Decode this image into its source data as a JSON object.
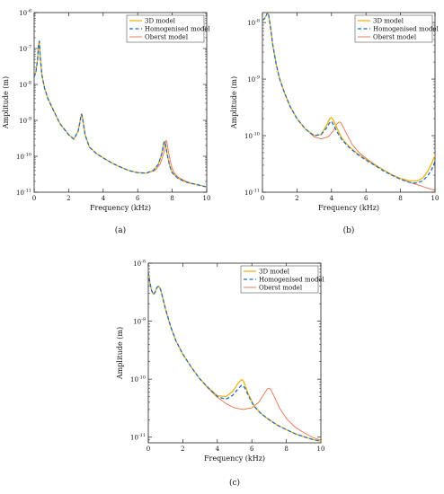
{
  "colors": {
    "model_3d": "#f2b418",
    "homogenised": "#1f6fbf",
    "oberst": "#e8704a"
  },
  "chart_data": [
    {
      "type": "line",
      "caption": "(a)",
      "xlabel": "Frequency (kHz)",
      "ylabel": "Amplitude (m)",
      "xlim": [
        0,
        10
      ],
      "ylim": [
        1e-11,
        1e-06
      ],
      "yscale": "log",
      "xticks": [
        "0",
        "2",
        "4",
        "6",
        "8",
        "10"
      ],
      "yticks": [
        {
          "base": "10",
          "exp": "-11"
        },
        {
          "base": "10",
          "exp": "-10"
        },
        {
          "base": "10",
          "exp": "-9"
        },
        {
          "base": "10",
          "exp": "-8"
        },
        {
          "base": "10",
          "exp": "-7"
        },
        {
          "base": "10",
          "exp": "-6"
        }
      ],
      "legend_position": "top-right",
      "series": [
        {
          "name": "3D model",
          "x": [
            0,
            0.1,
            0.2,
            0.25,
            0.3,
            0.35,
            0.45,
            0.6,
            0.8,
            1.0,
            1.5,
            2.0,
            2.3,
            2.55,
            2.7,
            2.75,
            2.8,
            2.95,
            3.2,
            3.6,
            4.0,
            4.5,
            5.0,
            5.5,
            6.0,
            6.5,
            6.9,
            7.2,
            7.4,
            7.5,
            7.55,
            7.6,
            7.7,
            7.85,
            8.0,
            8.3,
            8.7,
            9.0,
            9.5,
            10
          ],
          "y": [
            1.6e-08,
            2.2e-08,
            5e-08,
            1.2e-07,
            1.6e-07,
            6e-08,
            1.8e-08,
            8e-09,
            4e-09,
            2.5e-09,
            8e-10,
            4e-10,
            3e-10,
            5e-10,
            1.2e-09,
            1.5e-09,
            1.2e-09,
            4e-10,
            1.8e-10,
            1.2e-10,
            9e-11,
            6.5e-11,
            5e-11,
            4e-11,
            3.5e-11,
            3.4e-11,
            4e-11,
            6e-11,
            1.2e-10,
            2.2e-10,
            2.6e-10,
            2.3e-10,
            1.2e-10,
            5.5e-11,
            3.5e-11,
            2.5e-11,
            2e-11,
            1.8e-11,
            1.6e-11,
            1.4e-11
          ]
        },
        {
          "name": "Homogenised model",
          "x": [
            0,
            0.1,
            0.2,
            0.25,
            0.3,
            0.35,
            0.45,
            0.6,
            0.8,
            1.0,
            1.5,
            2.0,
            2.3,
            2.55,
            2.7,
            2.75,
            2.8,
            2.95,
            3.2,
            3.6,
            4.0,
            4.5,
            5.0,
            5.5,
            6.0,
            6.5,
            6.9,
            7.2,
            7.4,
            7.5,
            7.55,
            7.6,
            7.7,
            7.85,
            8.0,
            8.3,
            8.7,
            9.0,
            9.5,
            10
          ],
          "y": [
            1.6e-08,
            2.2e-08,
            5e-08,
            1.2e-07,
            1.6e-07,
            6e-08,
            1.8e-08,
            8e-09,
            4e-09,
            2.5e-09,
            8e-10,
            4e-10,
            3e-10,
            5e-10,
            1.2e-09,
            1.5e-09,
            1.2e-09,
            4e-10,
            1.8e-10,
            1.2e-10,
            9e-11,
            6.5e-11,
            5e-11,
            4e-11,
            3.5e-11,
            3.4e-11,
            4e-11,
            6e-11,
            1.2e-10,
            2.2e-10,
            2.6e-10,
            2.3e-10,
            1.2e-10,
            5.5e-11,
            3.5e-11,
            2.5e-11,
            2e-11,
            1.8e-11,
            1.6e-11,
            1.4e-11
          ]
        },
        {
          "name": "Oberst model",
          "x": [
            0,
            0.1,
            0.2,
            0.25,
            0.3,
            0.35,
            0.45,
            0.6,
            0.8,
            1.0,
            1.5,
            2.0,
            2.3,
            2.55,
            2.7,
            2.75,
            2.8,
            2.95,
            3.2,
            3.6,
            4.0,
            4.5,
            5.0,
            5.5,
            6.0,
            6.5,
            7.0,
            7.3,
            7.5,
            7.6,
            7.65,
            7.7,
            7.8,
            7.95,
            8.1,
            8.4,
            8.8,
            9.1,
            9.5,
            10
          ],
          "y": [
            1.6e-08,
            2.2e-08,
            5e-08,
            1.2e-07,
            1.6e-07,
            6e-08,
            1.8e-08,
            8e-09,
            4e-09,
            2.5e-09,
            8e-10,
            4e-10,
            3e-10,
            5e-10,
            1.2e-09,
            1.5e-09,
            1.2e-09,
            4e-10,
            1.8e-10,
            1.2e-10,
            9e-11,
            6.5e-11,
            5e-11,
            4e-11,
            3.5e-11,
            3.4e-11,
            4e-11,
            6e-11,
            1.2e-10,
            2.2e-10,
            2.8e-10,
            2.4e-10,
            1.2e-10,
            5.5e-11,
            3.5e-11,
            2.5e-11,
            2e-11,
            1.8e-11,
            1.6e-11,
            1.4e-11
          ]
        }
      ]
    },
    {
      "type": "line",
      "caption": "(b)",
      "xlabel": "Frequency (kHz)",
      "ylabel": "Amplitude (m)",
      "xlim": [
        0,
        10
      ],
      "ylim": [
        1e-11,
        1.5e-08
      ],
      "yscale": "log",
      "xticks": [
        "0",
        "2",
        "4",
        "6",
        "8",
        "10"
      ],
      "yticks": [
        {
          "base": "10",
          "exp": "-11"
        },
        {
          "base": "10",
          "exp": "-10"
        },
        {
          "base": "10",
          "exp": "-9"
        },
        {
          "base": "10",
          "exp": "-8"
        }
      ],
      "legend_position": "top-right",
      "series": [
        {
          "name": "3D model",
          "x": [
            0,
            0.1,
            0.2,
            0.3,
            0.35,
            0.45,
            0.6,
            0.8,
            1.0,
            1.3,
            1.6,
            2.0,
            2.5,
            3.0,
            3.4,
            3.7,
            3.9,
            4.0,
            4.1,
            4.3,
            4.6,
            5.0,
            5.5,
            6.0,
            6.5,
            7.0,
            7.5,
            8.0,
            8.5,
            8.8,
            9.0,
            9.3,
            9.6,
            9.8,
            10
          ],
          "y": [
            1.1e-08,
            1.15e-08,
            1.3e-08,
            1.5e-08,
            1.4e-08,
            9e-09,
            4e-09,
            1.8e-09,
            1e-09,
            5.5e-10,
            3.3e-10,
            2e-10,
            1.3e-10,
            1e-10,
            1.05e-10,
            1.5e-10,
            2e-10,
            2.1e-10,
            1.9e-10,
            1.4e-10,
            9e-11,
            6.5e-11,
            4.8e-11,
            3.8e-11,
            3e-11,
            2.5e-11,
            2e-11,
            1.75e-11,
            1.6e-11,
            1.58e-11,
            1.6e-11,
            1.8e-11,
            2.4e-11,
            3.2e-11,
            4.5e-11
          ]
        },
        {
          "name": "Homogenised model",
          "x": [
            0,
            0.1,
            0.2,
            0.3,
            0.35,
            0.45,
            0.6,
            0.8,
            1.0,
            1.3,
            1.6,
            2.0,
            2.5,
            3.0,
            3.4,
            3.7,
            3.9,
            4.0,
            4.1,
            4.3,
            4.6,
            5.0,
            5.5,
            6.0,
            6.5,
            7.0,
            7.5,
            8.0,
            8.5,
            8.8,
            9.0,
            9.3,
            9.6,
            9.8,
            10
          ],
          "y": [
            1.1e-08,
            1.15e-08,
            1.3e-08,
            1.5e-08,
            1.4e-08,
            9e-09,
            4e-09,
            1.8e-09,
            1e-09,
            5.5e-10,
            3.3e-10,
            2e-10,
            1.3e-10,
            1e-10,
            1.05e-10,
            1.35e-10,
            1.7e-10,
            1.8e-10,
            1.6e-10,
            1.2e-10,
            8.5e-11,
            6.3e-11,
            4.7e-11,
            3.7e-11,
            3e-11,
            2.4e-11,
            2e-11,
            1.7e-11,
            1.5e-11,
            1.45e-11,
            1.47e-11,
            1.6e-11,
            2e-11,
            2.5e-11,
            3.5e-11
          ]
        },
        {
          "name": "Oberst model",
          "x": [
            0,
            0.1,
            0.2,
            0.3,
            0.35,
            0.45,
            0.6,
            0.8,
            1.0,
            1.3,
            1.6,
            2.0,
            2.5,
            3.0,
            3.4,
            3.8,
            4.1,
            4.3,
            4.45,
            4.55,
            4.8,
            5.2,
            5.6,
            6.0,
            6.5,
            7.0,
            7.5,
            8.0,
            8.5,
            9.0,
            9.5,
            10
          ],
          "y": [
            1.1e-08,
            1.15e-08,
            1.3e-08,
            1.5e-08,
            1.4e-08,
            9e-09,
            4e-09,
            1.8e-09,
            1e-09,
            5.5e-10,
            3.3e-10,
            2e-10,
            1.3e-10,
            9.5e-11,
            8.8e-11,
            9.5e-11,
            1.2e-10,
            1.6e-10,
            1.75e-10,
            1.7e-10,
            1.2e-10,
            7e-11,
            5e-11,
            4e-11,
            3.1e-11,
            2.5e-11,
            2.05e-11,
            1.75e-11,
            1.5e-11,
            1.35e-11,
            1.2e-11,
            1.08e-11
          ]
        }
      ]
    },
    {
      "type": "line",
      "caption": "(c)",
      "xlabel": "Frequency (kHz)",
      "ylabel": "Amplitude (m)",
      "xlim": [
        0,
        10
      ],
      "ylim": [
        8e-12,
        1e-08
      ],
      "yscale": "log",
      "xticks": [
        "0",
        "2",
        "4",
        "6",
        "8",
        "10"
      ],
      "yticks": [
        {
          "base": "10",
          "exp": "-11"
        },
        {
          "base": "10",
          "exp": "-10"
        },
        {
          "base": "10",
          "exp": "-9"
        },
        {
          "base": "10",
          "exp": "-8"
        }
      ],
      "legend_position": "top-right",
      "series": [
        {
          "name": "3D model",
          "x": [
            0,
            0.1,
            0.2,
            0.3,
            0.4,
            0.5,
            0.6,
            0.7,
            0.8,
            1.0,
            1.3,
            1.6,
            2.0,
            2.5,
            3.0,
            3.5,
            4.0,
            4.5,
            4.9,
            5.2,
            5.4,
            5.5,
            5.6,
            5.8,
            6.1,
            6.5,
            7.0,
            7.5,
            8.0,
            8.5,
            9.0,
            9.5,
            10
          ],
          "y": [
            7e-09,
            4.5e-09,
            3.3e-09,
            2.9e-09,
            3.2e-09,
            3.8e-09,
            4e-09,
            3.6e-09,
            2.8e-09,
            1.6e-09,
            8e-10,
            4.6e-10,
            2.7e-10,
            1.6e-10,
            1e-10,
            7e-11,
            5.2e-11,
            5e-11,
            6.2e-11,
            8.5e-11,
            9.8e-11,
            9.5e-11,
            8e-11,
            5.5e-11,
            3.6e-11,
            2.6e-11,
            2e-11,
            1.6e-11,
            1.35e-11,
            1.15e-11,
            1.02e-11,
            9.2e-12,
            8.5e-12
          ]
        },
        {
          "name": "Homogenised model",
          "x": [
            0,
            0.1,
            0.2,
            0.3,
            0.4,
            0.5,
            0.6,
            0.7,
            0.8,
            1.0,
            1.3,
            1.6,
            2.0,
            2.5,
            3.0,
            3.5,
            4.0,
            4.5,
            4.9,
            5.2,
            5.4,
            5.5,
            5.6,
            5.8,
            6.1,
            6.5,
            7.0,
            7.5,
            8.0,
            8.5,
            9.0,
            9.5,
            10
          ],
          "y": [
            7e-09,
            4.5e-09,
            3.3e-09,
            2.9e-09,
            3.2e-09,
            3.8e-09,
            4e-09,
            3.6e-09,
            2.8e-09,
            1.6e-09,
            8e-10,
            4.6e-10,
            2.7e-10,
            1.6e-10,
            1e-10,
            7e-11,
            5e-11,
            4.5e-11,
            5.3e-11,
            6.8e-11,
            7.8e-11,
            7.7e-11,
            7e-11,
            5.2e-11,
            3.5e-11,
            2.6e-11,
            2e-11,
            1.6e-11,
            1.35e-11,
            1.15e-11,
            1.02e-11,
            9.2e-12,
            8.5e-12
          ]
        },
        {
          "name": "Oberst model",
          "x": [
            0,
            0.1,
            0.2,
            0.3,
            0.4,
            0.5,
            0.6,
            0.7,
            0.8,
            1.0,
            1.3,
            1.6,
            2.0,
            2.5,
            3.0,
            3.5,
            4.0,
            4.5,
            5.0,
            5.5,
            6.0,
            6.4,
            6.7,
            6.9,
            7.0,
            7.1,
            7.3,
            7.6,
            8.0,
            8.5,
            9.0,
            9.5,
            10
          ],
          "y": [
            7e-09,
            4.5e-09,
            3.3e-09,
            2.9e-09,
            3.2e-09,
            3.8e-09,
            4e-09,
            3.6e-09,
            2.8e-09,
            1.6e-09,
            8e-10,
            4.6e-10,
            2.7e-10,
            1.6e-10,
            1e-10,
            6.8e-11,
            4.9e-11,
            3.8e-11,
            3.2e-11,
            3e-11,
            3.2e-11,
            4e-11,
            5.5e-11,
            6.8e-11,
            7e-11,
            6.6e-11,
            5e-11,
            3.2e-11,
            2.1e-11,
            1.5e-11,
            1.2e-11,
            1e-11,
            8.8e-12
          ]
        }
      ]
    }
  ]
}
